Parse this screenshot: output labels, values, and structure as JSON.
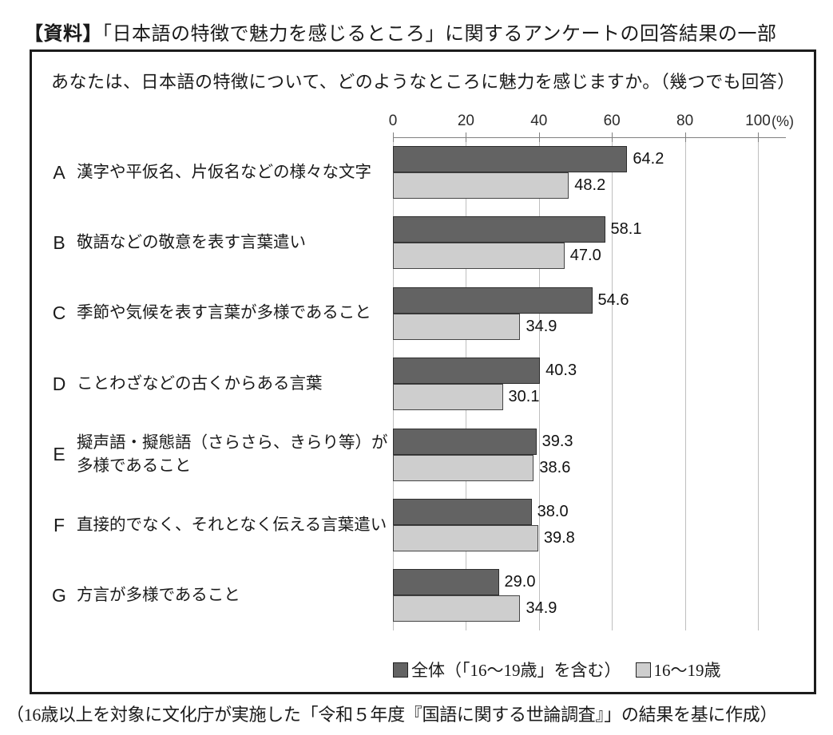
{
  "page": {
    "title_tag": "【資料】",
    "title": "「日本語の特徴で魅力を感じるところ」に関するアンケートの回答結果の一部",
    "question": "あなたは、日本語の特徴について、どのようなところに魅力を感じますか。（幾つでも回答）",
    "footer": "（16歳以上を対象に文化庁が実施した「令和５年度『国語に関する世論調査』」の結果を基に作成）"
  },
  "chart_data": {
    "type": "bar",
    "orientation": "horizontal",
    "title": "",
    "xlabel": "",
    "ylabel": "",
    "unit_label": "(%)",
    "xlim": [
      0,
      100
    ],
    "x_ticks": [
      0,
      20,
      40,
      60,
      80,
      100
    ],
    "grid": true,
    "legend_position": "bottom-right",
    "categories": [
      {
        "key": "A",
        "label": "漢字や平仮名、片仮名などの様々な文字"
      },
      {
        "key": "B",
        "label": "敬語などの敬意を表す言葉遣い"
      },
      {
        "key": "C",
        "label": "季節や気候を表す言葉が多様であること"
      },
      {
        "key": "D",
        "label": "ことわざなどの古くからある言葉"
      },
      {
        "key": "E",
        "label": "擬声語・擬態語（さらさら、きらり等）が多様であること"
      },
      {
        "key": "F",
        "label": "直接的でなく、それとなく伝える言葉遣い"
      },
      {
        "key": "G",
        "label": "方言が多様であること"
      }
    ],
    "series": [
      {
        "name": "全体（「16〜19歳」を含む）",
        "color": "#636363",
        "values": [
          64.2,
          58.1,
          54.6,
          40.3,
          39.3,
          38.0,
          29.0
        ]
      },
      {
        "name": "16〜19歳",
        "color": "#cecece",
        "values": [
          48.2,
          47.0,
          34.9,
          30.1,
          38.6,
          39.8,
          34.9
        ]
      }
    ]
  }
}
